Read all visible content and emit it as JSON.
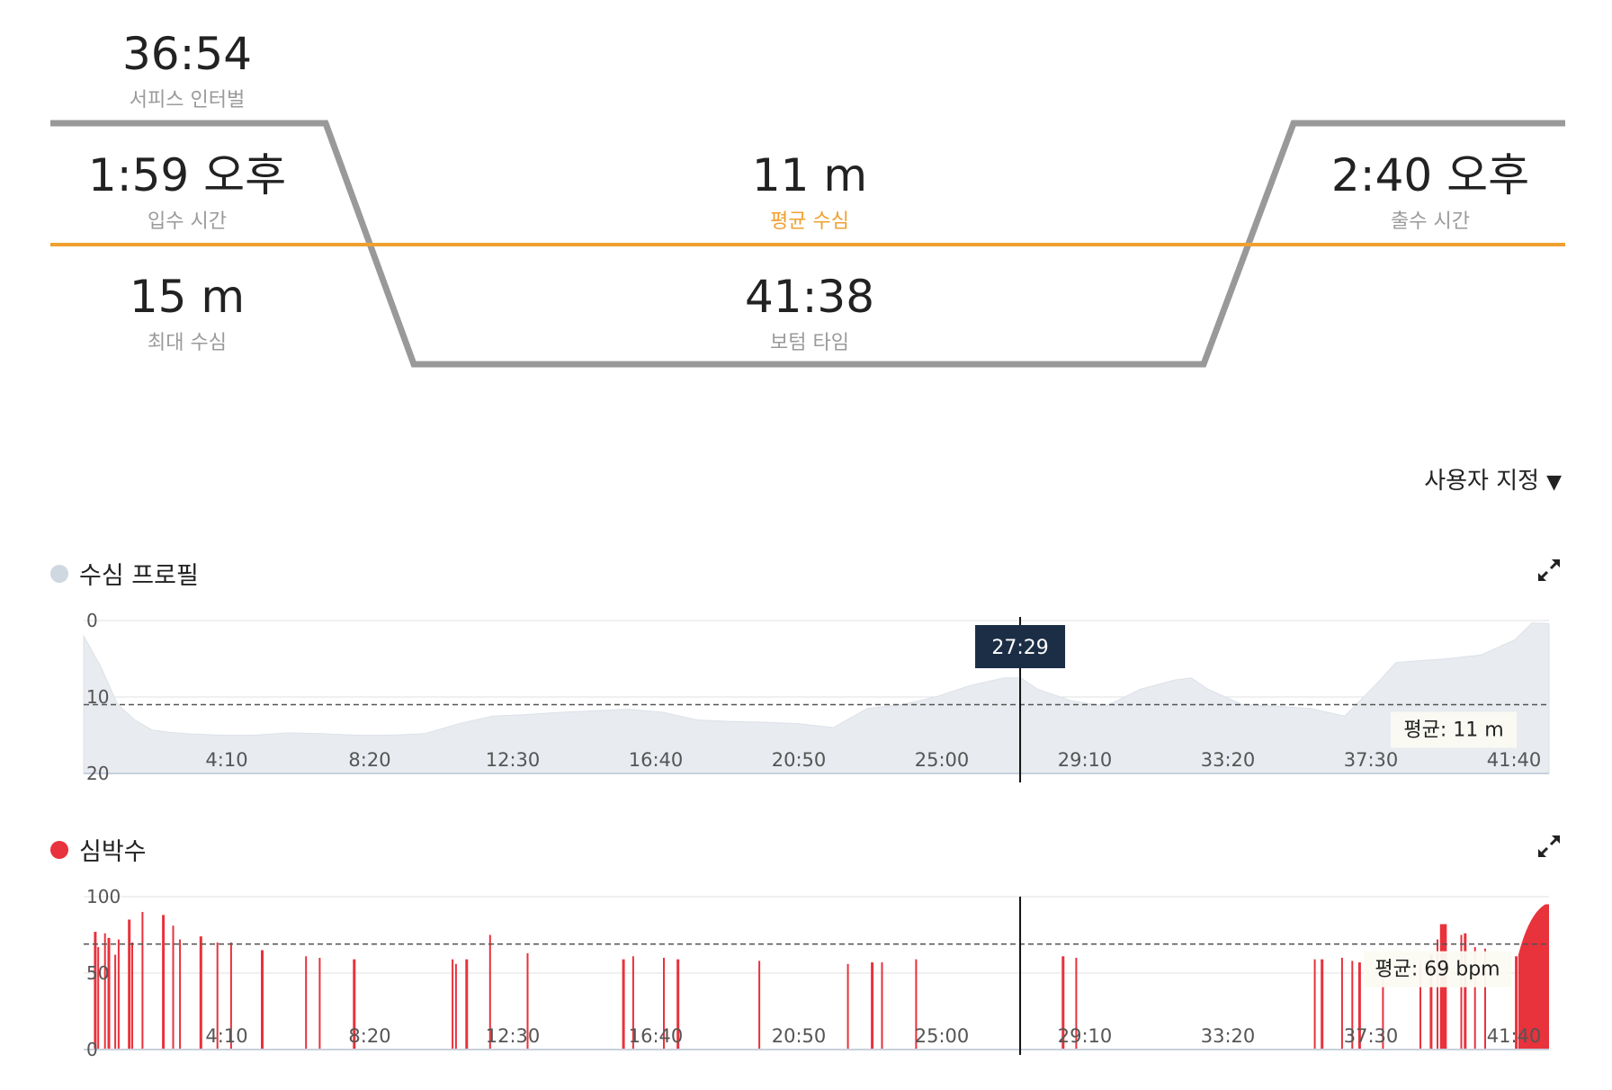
{
  "summary": {
    "surface_interval": {
      "value": "36:54",
      "label": "서피스 인터벌"
    },
    "entry_time": {
      "value": "1:59 오후",
      "label": "입수 시간"
    },
    "avg_depth": {
      "value": "11 m",
      "label": "평균 수심"
    },
    "exit_time": {
      "value": "2:40 오후",
      "label": "출수 시간"
    },
    "max_depth": {
      "value": "15 m",
      "label": "최대 수심"
    },
    "bottom_time": {
      "value": "41:38",
      "label": "보텀 타임"
    }
  },
  "colors": {
    "profile_line": "#999999",
    "avg_line": "#f0a030",
    "depth_area": "#e8ebf0",
    "depth_dot": "#cfd8e0",
    "hr_dot": "#e8323c",
    "hr_bar": "#e8323c",
    "tooltip_bg": "#1b2e45"
  },
  "selector": {
    "label": "사용자 지정"
  },
  "chart_data": [
    {
      "type": "area",
      "title": "수심 프로필",
      "y_inverted": true,
      "ylim": [
        20,
        0
      ],
      "yticks": [
        "0",
        "10",
        "20"
      ],
      "xticks": [
        "4:10",
        "8:20",
        "12:30",
        "16:40",
        "20:50",
        "25:00",
        "29:10",
        "33:20",
        "37:30",
        "41:40"
      ],
      "x_range_min": [
        0,
        43
      ],
      "x": [
        0,
        0.5,
        1,
        1.5,
        2,
        2.5,
        3,
        4,
        5,
        6,
        7,
        8,
        9,
        10,
        11,
        12,
        13,
        14,
        15,
        16,
        17,
        18,
        19,
        20,
        21,
        22,
        23,
        24,
        25,
        26,
        27,
        27.5,
        28,
        29,
        30,
        31,
        32,
        32.5,
        33,
        34,
        35,
        36,
        37,
        38,
        38.5,
        39,
        40,
        41,
        42,
        42.5,
        43
      ],
      "y": [
        2,
        6,
        11,
        13,
        14.3,
        14.6,
        14.8,
        15,
        15,
        14.7,
        14.8,
        15,
        15,
        14.8,
        13.5,
        12.5,
        12.3,
        12,
        11.8,
        11.6,
        12,
        13,
        13.2,
        13.3,
        13.5,
        14,
        11.5,
        11,
        10,
        8.5,
        7.5,
        7.5,
        9,
        10.5,
        11.2,
        9,
        7.8,
        7.5,
        9,
        11,
        11.2,
        11.5,
        12.5,
        8,
        5.5,
        5.3,
        5,
        4.5,
        2.5,
        0.3,
        0.4
      ],
      "avg_label": "평균: 11 m",
      "avg_value": 11,
      "cursor_time": "27:29",
      "cursor_min": 27.48
    },
    {
      "type": "bar",
      "title": "심박수",
      "ylim": [
        0,
        100
      ],
      "yticks": [
        "100",
        "50",
        "0"
      ],
      "xticks": [
        "4:10",
        "8:20",
        "12:30",
        "16:40",
        "20:50",
        "25:00",
        "29:10",
        "33:20",
        "37:30",
        "41:40"
      ],
      "x_range_min": [
        0,
        43
      ],
      "x": [
        0.3,
        0.4,
        0.6,
        0.7,
        0.9,
        1.0,
        1.3,
        1.4,
        1.7,
        2.3,
        2.6,
        2.8,
        3.4,
        3.9,
        4.3,
        5.2,
        6.5,
        6.9,
        7.9,
        10.8,
        10.9,
        11.2,
        11.9,
        13.0,
        15.8,
        16.1,
        17.0,
        17.4,
        19.8,
        22.4,
        23.1,
        23.4,
        24.4,
        28.7,
        29.1,
        36.1,
        36.3,
        36.9,
        37.2,
        37.4,
        38.1,
        39.2,
        39.5,
        39.7,
        40.4,
        40.5,
        40.8,
        41.1,
        42.0,
        42.4
      ],
      "values": [
        77,
        67,
        76,
        73,
        62,
        72,
        85,
        70,
        90,
        88,
        81,
        72,
        74,
        70,
        70,
        65,
        61,
        60,
        59,
        59,
        56,
        59,
        75,
        63,
        59,
        61,
        60,
        59,
        58,
        56,
        57,
        57,
        59,
        61,
        60,
        59,
        59,
        60,
        58,
        57,
        58,
        58,
        62,
        72,
        75,
        76,
        67,
        66,
        61,
        59
      ],
      "block_start_min": 39.8,
      "block_end_min": 40.0,
      "end_ramp": {
        "start_min": 42.1,
        "start_value": 62,
        "end_value": 95
      },
      "avg_label": "평균: 69 bpm",
      "avg_value": 69,
      "cursor_min": 27.48
    }
  ]
}
